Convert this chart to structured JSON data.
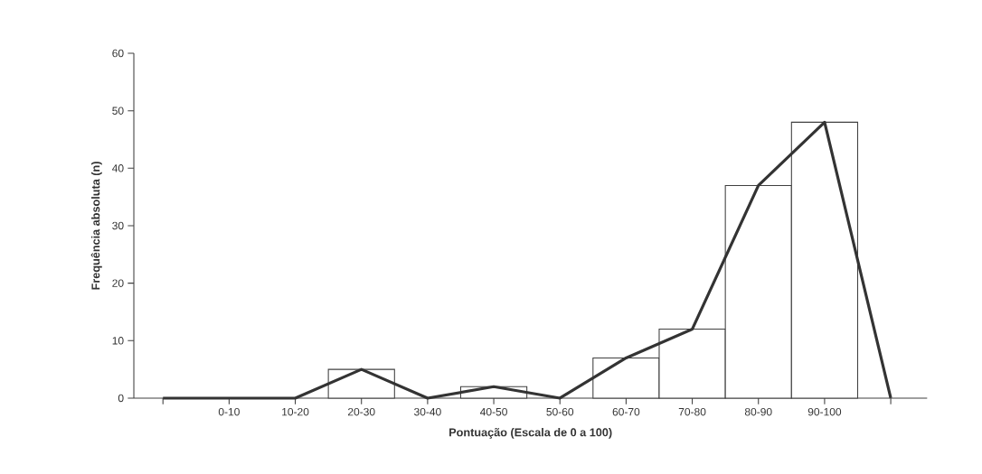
{
  "chart_data": {
    "type": "bar",
    "xlabel": "Pontuação (Escala de 0 a 100)",
    "ylabel": "Frequência absoluta (n)",
    "categories": [
      null,
      "0-10",
      "10-20",
      "20-30",
      "30-40",
      "40-50",
      "50-60",
      "60-70",
      "70-80",
      "80-90",
      "90-100",
      null
    ],
    "series": [
      {
        "color": "#ffffff",
        "values": [
          null,
          0,
          0,
          5,
          0,
          2,
          0,
          7,
          12,
          37,
          48,
          null
        ]
      },
      {
        "type": "line",
        "color": "#333333",
        "values": [
          0,
          0,
          0,
          5,
          0,
          2,
          0,
          7,
          12,
          37,
          48,
          0
        ]
      }
    ],
    "ylim": [
      0,
      60
    ],
    "yticks": [
      0,
      10,
      20,
      30,
      40,
      50,
      60
    ],
    "marker": "none",
    "line_style": "solid"
  }
}
